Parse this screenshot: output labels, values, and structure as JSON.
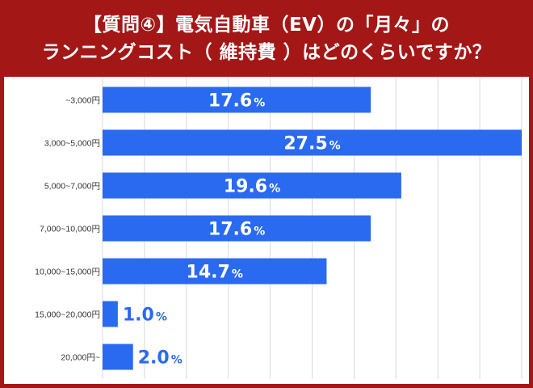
{
  "colors": {
    "header_background": "#A31716",
    "bar": "#2A6AF0",
    "label_inside": "#FFFFFF",
    "label_outside": "#2A6AF0",
    "grid": "#D9D9D9",
    "tick_text": "#333333"
  },
  "header": {
    "title_line1": "【質問④】電気自動車（EV）の「月々」の",
    "title_line2": "ランニングコスト（ 維持費 ）はどのくらいですか？"
  },
  "chart_data": {
    "type": "bar",
    "orientation": "horizontal",
    "categories": [
      "~3,000円",
      "3,000~5,000円",
      "5,000~7,000円",
      "7,000~10,000円",
      "10,000~15,000円",
      "15,000~20,000円",
      "20,000円~"
    ],
    "values": [
      17.6,
      27.5,
      19.6,
      17.6,
      14.7,
      1.0,
      2.0
    ],
    "labels": [
      "17.6",
      "27.5",
      "19.6",
      "17.6",
      "14.7",
      "1.0",
      "2.0"
    ],
    "unit_suffix": "%",
    "title": "",
    "xlabel": "",
    "ylabel": "",
    "xlim": [
      0,
      27.5
    ],
    "grid": true,
    "legend": "none"
  }
}
